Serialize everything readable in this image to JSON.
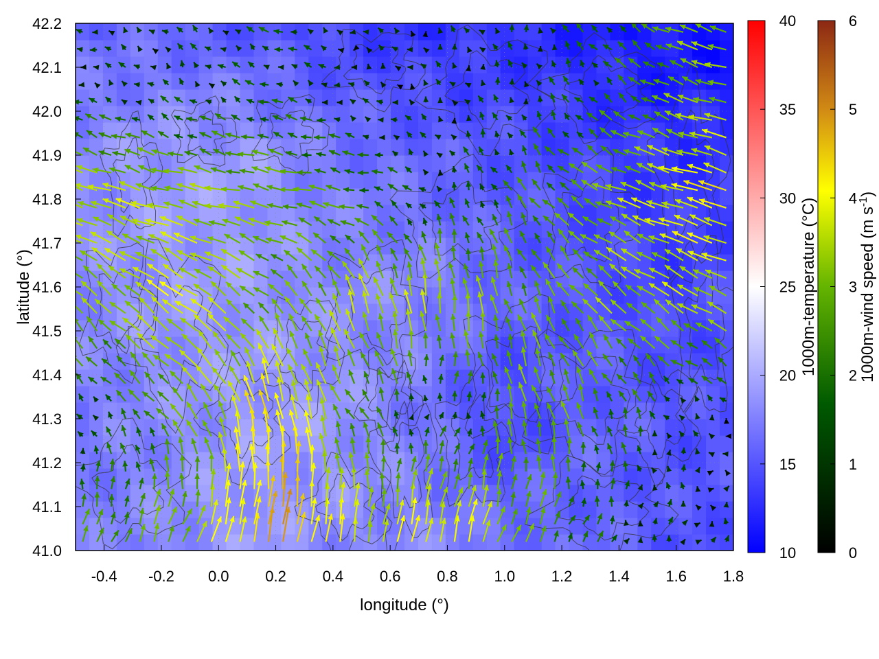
{
  "chart_data": {
    "type": "heatmap",
    "title": "",
    "xlabel": "longitude (°)",
    "ylabel": "latitude (°)",
    "xlim": [
      -0.5,
      1.8
    ],
    "ylim": [
      41.0,
      42.2
    ],
    "xticks": [
      "-0.4",
      "-0.2",
      "0.0",
      "0.2",
      "0.4",
      "0.6",
      "0.8",
      "1.0",
      "1.2",
      "1.4",
      "1.6",
      "1.8"
    ],
    "xtick_values": [
      -0.4,
      -0.2,
      0.0,
      0.2,
      0.4,
      0.6,
      0.8,
      1.0,
      1.2,
      1.4,
      1.6,
      1.8
    ],
    "yticks": [
      "41.0",
      "41.1",
      "41.2",
      "41.3",
      "41.4",
      "41.5",
      "41.6",
      "41.7",
      "41.8",
      "41.9",
      "42.0",
      "42.1",
      "42.2"
    ],
    "ytick_values": [
      41.0,
      41.1,
      41.2,
      41.3,
      41.4,
      41.5,
      41.6,
      41.7,
      41.8,
      41.9,
      42.0,
      42.1,
      42.2
    ],
    "temperature_colorbar": {
      "label": "1000m-temperature (°C)",
      "range": [
        10,
        40
      ],
      "ticks": [
        "10",
        "15",
        "20",
        "25",
        "30",
        "35",
        "40"
      ],
      "tick_values": [
        10,
        15,
        20,
        25,
        30,
        35,
        40
      ],
      "colors": [
        "#0000ff",
        "#ffffff",
        "#ff0000"
      ]
    },
    "wind_colorbar": {
      "label": "1000m-wind speed (m s",
      "label_superscript": "-1",
      "label_suffix": ")",
      "range": [
        0,
        6
      ],
      "ticks": [
        "0",
        "1",
        "2",
        "3",
        "4",
        "5",
        "6"
      ],
      "tick_values": [
        0,
        1,
        2,
        3,
        4,
        5,
        6
      ],
      "colors": [
        "#000000",
        "#005a00",
        "#64b400",
        "#ffff00",
        "#d28c14",
        "#8c2814"
      ]
    },
    "temperature_field": {
      "description_values": "approximate 1000m temperature (°C) sampled on coarse grid",
      "lon": [
        -0.5,
        -0.2,
        0.1,
        0.4,
        0.7,
        1.0,
        1.3,
        1.6,
        1.8
      ],
      "lat": [
        41.0,
        41.3,
        41.6,
        41.9,
        42.2
      ],
      "values": [
        [
          17,
          18,
          19,
          18,
          18,
          17,
          16,
          15,
          15
        ],
        [
          17,
          18,
          19,
          19,
          17,
          14,
          16,
          15,
          15
        ],
        [
          18,
          19,
          19,
          18,
          18,
          16,
          15,
          14,
          15
        ],
        [
          18,
          19,
          19,
          17,
          16,
          15,
          14,
          13,
          13
        ],
        [
          16,
          16,
          15,
          14,
          13,
          13,
          12,
          11,
          11
        ]
      ]
    },
    "wind_field": {
      "description_values": "approximate wind vectors: u, v components (m/s) on coarse grid",
      "lon": [
        -0.4,
        -0.1,
        0.2,
        0.5,
        0.8,
        1.1,
        1.4,
        1.7
      ],
      "lat": [
        41.05,
        41.3,
        41.55,
        41.8,
        42.05
      ],
      "u": [
        [
          0.6,
          1.0,
          0.8,
          0.5,
          0.8,
          0.9,
          0.3,
          0.2
        ],
        [
          -0.6,
          -1.5,
          -0.8,
          -1.0,
          0.5,
          -0.8,
          -0.5,
          -0.3
        ],
        [
          -1.8,
          -2.8,
          -1.5,
          -1.0,
          -0.3,
          -0.8,
          -2.0,
          -2.5
        ],
        [
          -3.0,
          -2.8,
          -2.5,
          -1.8,
          -0.3,
          -1.0,
          -2.5,
          -3.5
        ],
        [
          -0.6,
          -0.5,
          -1.0,
          -0.4,
          -0.3,
          -0.2,
          -1.0,
          -2.5
        ]
      ],
      "v": [
        [
          1.8,
          2.5,
          4.5,
          3.0,
          3.5,
          2.0,
          0.8,
          0.5
        ],
        [
          0.8,
          1.8,
          4.0,
          1.5,
          0.5,
          2.5,
          1.5,
          0.3
        ],
        [
          1.8,
          2.0,
          1.5,
          3.0,
          3.0,
          2.0,
          1.8,
          1.5
        ],
        [
          1.0,
          0.6,
          0.5,
          0.3,
          0.8,
          1.5,
          1.0,
          1.0
        ],
        [
          0.3,
          0.6,
          0.4,
          0.2,
          0.5,
          0.8,
          1.0,
          0.8
        ]
      ]
    },
    "contours": {
      "color": "#333333",
      "description_values": "orography contour lines"
    },
    "grid": true
  }
}
